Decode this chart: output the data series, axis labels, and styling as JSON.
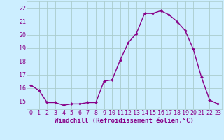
{
  "x": [
    0,
    1,
    2,
    3,
    4,
    5,
    6,
    7,
    8,
    9,
    10,
    11,
    12,
    13,
    14,
    15,
    16,
    17,
    18,
    19,
    20,
    21,
    22,
    23
  ],
  "y": [
    16.2,
    15.8,
    14.9,
    14.9,
    14.7,
    14.8,
    14.8,
    14.9,
    14.9,
    16.5,
    16.6,
    18.1,
    19.4,
    20.1,
    21.6,
    21.6,
    21.8,
    21.5,
    21.0,
    20.3,
    18.9,
    16.8,
    15.1,
    14.8
  ],
  "line_color": "#880088",
  "marker_color": "#880088",
  "bg_color": "#cceeff",
  "grid_color": "#aacccc",
  "xlabel": "Windchill (Refroidissement éolien,°C)",
  "ylabel_ticks": [
    15,
    16,
    17,
    18,
    19,
    20,
    21,
    22
  ],
  "xlim": [
    -0.5,
    23.5
  ],
  "ylim": [
    14.4,
    22.5
  ],
  "xtick_labels": [
    "0",
    "1",
    "2",
    "3",
    "4",
    "5",
    "6",
    "7",
    "8",
    "9",
    "10",
    "11",
    "12",
    "13",
    "14",
    "15",
    "16",
    "17",
    "18",
    "19",
    "20",
    "21",
    "22",
    "23"
  ],
  "font_color": "#880088",
  "font_size_xlabel": 6.5,
  "font_size_ticks": 6.0,
  "line_width": 1.0,
  "marker_size": 2.0
}
